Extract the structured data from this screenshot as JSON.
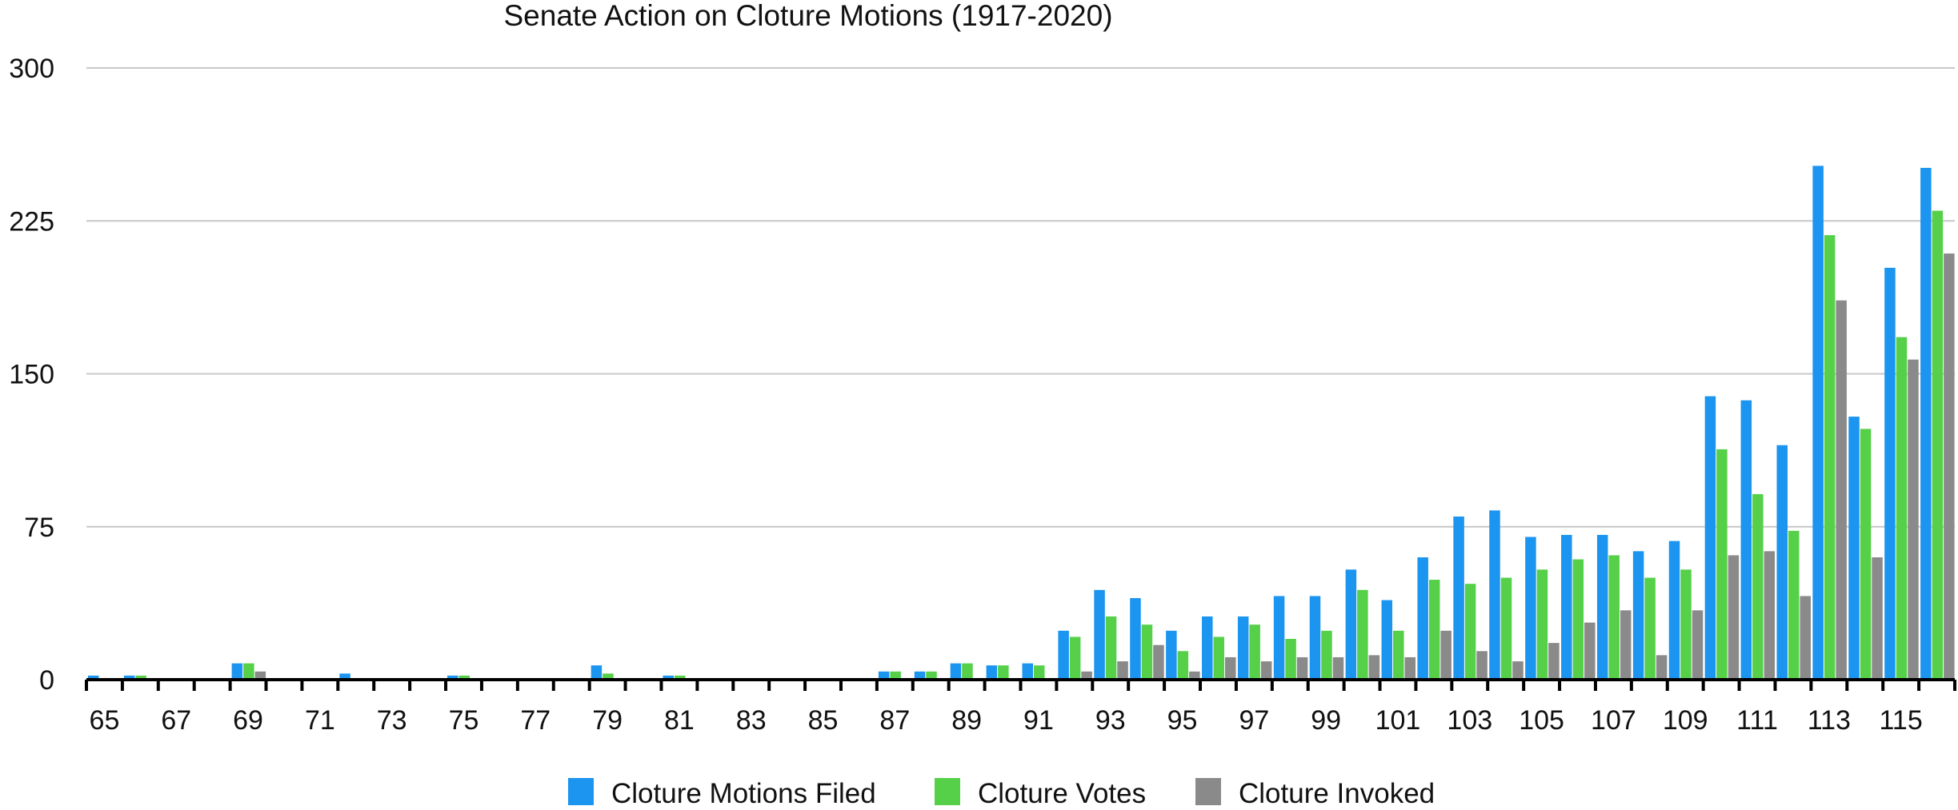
{
  "chart_data": {
    "type": "bar",
    "title": "Senate Action on Cloture Motions (1917-2020)",
    "xlabel": "",
    "ylabel": "",
    "ylim": [
      0,
      300
    ],
    "yticks": [
      0,
      75,
      150,
      225,
      300
    ],
    "grid": true,
    "legend_position": "bottom-center",
    "categories": [
      65,
      66,
      67,
      68,
      69,
      70,
      71,
      72,
      73,
      74,
      75,
      76,
      77,
      78,
      79,
      80,
      81,
      82,
      83,
      84,
      85,
      86,
      87,
      88,
      89,
      90,
      91,
      92,
      93,
      94,
      95,
      96,
      97,
      98,
      99,
      100,
      101,
      102,
      103,
      104,
      105,
      106,
      107,
      108,
      109,
      110,
      111,
      112,
      113,
      114,
      115,
      116
    ],
    "xtick_labels": [
      "65",
      "67",
      "69",
      "71",
      "73",
      "75",
      "77",
      "79",
      "81",
      "83",
      "85",
      "87",
      "89",
      "91",
      "93",
      "95",
      "97",
      "99",
      "101",
      "103",
      "105",
      "107",
      "109",
      "111",
      "113",
      "115"
    ],
    "series": [
      {
        "name": "Cloture Motions Filed",
        "color": "#1b95f0",
        "values": [
          2,
          2,
          0,
          0,
          8,
          0,
          0,
          3,
          0,
          0,
          2,
          0,
          0,
          0,
          7,
          0,
          2,
          0,
          0,
          0,
          0,
          0,
          4,
          4,
          8,
          7,
          8,
          24,
          44,
          40,
          24,
          31,
          31,
          41,
          41,
          54,
          39,
          60,
          80,
          83,
          70,
          71,
          71,
          63,
          68,
          139,
          137,
          115,
          252,
          129,
          202,
          251
        ]
      },
      {
        "name": "Cloture Votes",
        "color": "#56d049",
        "values": [
          0,
          2,
          0,
          0,
          8,
          0,
          0,
          0,
          0,
          0,
          2,
          0,
          0,
          0,
          3,
          0,
          2,
          0,
          0,
          0,
          0,
          0,
          4,
          4,
          8,
          7,
          7,
          21,
          31,
          27,
          14,
          21,
          27,
          20,
          24,
          44,
          24,
          49,
          47,
          50,
          54,
          59,
          61,
          50,
          54,
          113,
          91,
          73,
          218,
          123,
          168,
          230
        ]
      },
      {
        "name": "Cloture Invoked",
        "color": "#8a8a8a",
        "values": [
          0,
          0,
          0,
          0,
          4,
          0,
          0,
          0,
          0,
          0,
          0,
          0,
          0,
          0,
          0,
          0,
          0,
          0,
          0,
          0,
          0,
          0,
          0,
          0,
          0,
          0,
          0,
          4,
          9,
          17,
          4,
          11,
          9,
          11,
          11,
          12,
          11,
          24,
          14,
          9,
          18,
          28,
          34,
          12,
          34,
          61,
          63,
          41,
          186,
          60,
          157,
          209
        ]
      }
    ]
  }
}
